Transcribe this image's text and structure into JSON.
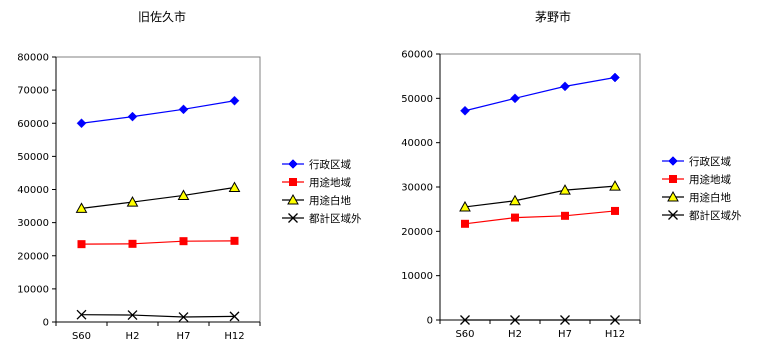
{
  "chart_data": [
    {
      "type": "line",
      "title": "旧佐久市",
      "categories": [
        "S60",
        "H2",
        "H7",
        "H12"
      ],
      "ylim": [
        0,
        80000
      ],
      "yticks": [
        0,
        10000,
        20000,
        30000,
        40000,
        50000,
        60000,
        70000,
        80000
      ],
      "grid": false,
      "legend": "right",
      "series": [
        {
          "name": "行政区域",
          "values": [
            60000,
            62000,
            64200,
            66800
          ],
          "color": "#0000ff",
          "marker": "diamond"
        },
        {
          "name": "用途地域",
          "values": [
            23500,
            23600,
            24400,
            24500
          ],
          "color": "#ff0000",
          "marker": "square"
        },
        {
          "name": "用途白地",
          "values": [
            34300,
            36200,
            38200,
            40600
          ],
          "color": "#000000",
          "marker": "triangle"
        },
        {
          "name": "都計区域外",
          "values": [
            2200,
            2100,
            1500,
            1700
          ],
          "color": "#000000",
          "marker": "x"
        }
      ]
    },
    {
      "type": "line",
      "title": "茅野市",
      "categories": [
        "S60",
        "H2",
        "H7",
        "H12"
      ],
      "ylim": [
        0,
        60000
      ],
      "yticks": [
        0,
        10000,
        20000,
        30000,
        40000,
        50000,
        60000
      ],
      "grid": false,
      "legend": "right",
      "series": [
        {
          "name": "行政区域",
          "values": [
            47200,
            50000,
            52700,
            54700
          ],
          "color": "#0000ff",
          "marker": "diamond"
        },
        {
          "name": "用途地域",
          "values": [
            21700,
            23100,
            23500,
            24600
          ],
          "color": "#ff0000",
          "marker": "square"
        },
        {
          "name": "用途白地",
          "values": [
            25500,
            26900,
            29300,
            30200
          ],
          "color": "#000000",
          "marker": "triangle"
        },
        {
          "name": "都計区域外",
          "values": [
            0,
            0,
            0,
            0
          ],
          "color": "#000000",
          "marker": "x"
        }
      ]
    }
  ]
}
